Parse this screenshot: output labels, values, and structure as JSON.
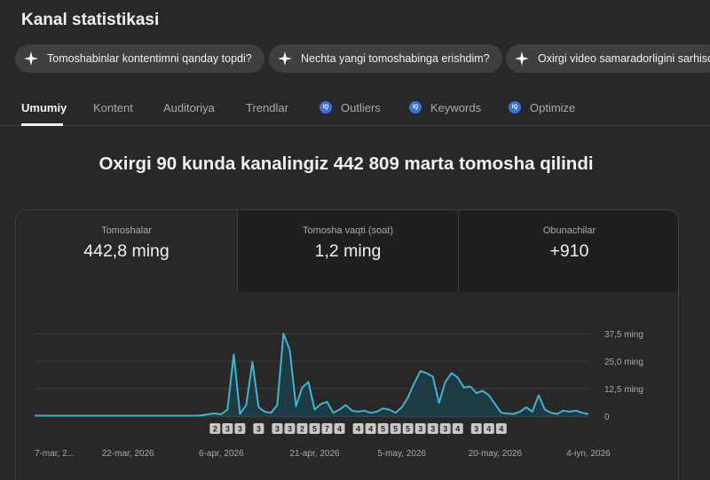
{
  "page_title": "Kanal statistikasi",
  "chips": [
    {
      "label": "Tomoshabinlar kontentimni qanday topdi?",
      "icon": "sparkle-icon"
    },
    {
      "label": "Nechta yangi tomoshabinga erishdim?",
      "icon": "sparkle-icon"
    },
    {
      "label": "Oxirgi video samaradorligini sarhisob",
      "icon": "sparkle-icon"
    }
  ],
  "tabs": [
    {
      "label": "Umumiy",
      "active": true
    },
    {
      "label": "Kontent"
    },
    {
      "label": "Auditoriya"
    },
    {
      "label": "Trendlar"
    },
    {
      "label": "Outliers",
      "icon": "vidiq-icon"
    },
    {
      "label": "Keywords",
      "icon": "vidiq-icon"
    },
    {
      "label": "Optimize",
      "icon": "vidiq-icon"
    }
  ],
  "headline": "Oxirgi 90 kunda kanalingiz 442 809 marta tomosha qilindi",
  "metrics": [
    {
      "label": "Tomoshalar",
      "value": "442,8 ming"
    },
    {
      "label": "Tomosha vaqti (soat)",
      "value": "1,2 ming"
    },
    {
      "label": "Obunachilar",
      "value": "+910"
    }
  ],
  "colors": {
    "background": "#282828",
    "line": "#41b4d2",
    "area": "#1c3d47",
    "chip": "#3f3f3f",
    "vidiq_icon": "#3b72d9",
    "marker": "#c8c8c8"
  },
  "chart_data": {
    "type": "area",
    "ylim": [
      0,
      37500
    ],
    "yticks": [
      "37,5 ming",
      "25,0 ming",
      "12,5 ming",
      "0"
    ],
    "ytick_values": [
      37500,
      25000,
      12500,
      0
    ],
    "xtick_labels": [
      "7-mar, 2...",
      "22-mar, 2026",
      "6-apr, 2026",
      "21-apr, 2026",
      "5-may, 2026",
      "20-may, 2026",
      "4-iyn, 2026"
    ],
    "xtick_days": [
      0,
      15,
      30,
      45,
      59,
      74,
      89
    ],
    "series": [
      {
        "values": [
          200,
          200,
          200,
          200,
          200,
          200,
          200,
          200,
          200,
          200,
          200,
          200,
          200,
          200,
          200,
          200,
          200,
          200,
          200,
          200,
          200,
          200,
          200,
          200,
          200,
          200,
          200,
          400,
          900,
          1200,
          800,
          3000,
          28000,
          1000,
          5000,
          24500,
          4000,
          2000,
          1500,
          5000,
          37500,
          30000,
          4500,
          13000,
          15500,
          3000,
          5500,
          6500,
          1500,
          3000,
          5000,
          2500,
          2000,
          2500,
          1500,
          2000,
          3500,
          3000,
          1500,
          4000,
          8500,
          15000,
          20500,
          19500,
          18000,
          6000,
          15500,
          19500,
          17500,
          13000,
          13500,
          10500,
          11500,
          9500,
          5500,
          1500,
          1200,
          1000,
          2000,
          4000,
          2000,
          9500,
          3000,
          1500,
          1000,
          2500,
          2000,
          2500,
          1500,
          1000
        ],
        "start": "7-mar"
      }
    ],
    "upload_markers": [
      {
        "day": 29,
        "count": "2"
      },
      {
        "day": 31,
        "count": "3"
      },
      {
        "day": 33,
        "count": "3"
      },
      {
        "day": 36,
        "count": "3"
      },
      {
        "day": 39,
        "count": "3"
      },
      {
        "day": 41,
        "count": "3"
      },
      {
        "day": 43,
        "count": "2"
      },
      {
        "day": 45,
        "count": "5"
      },
      {
        "day": 47,
        "count": "7"
      },
      {
        "day": 49,
        "count": "4"
      },
      {
        "day": 52,
        "count": "4"
      },
      {
        "day": 54,
        "count": "4"
      },
      {
        "day": 56,
        "count": "5"
      },
      {
        "day": 58,
        "count": "5"
      },
      {
        "day": 60,
        "count": "5"
      },
      {
        "day": 62,
        "count": "3"
      },
      {
        "day": 64,
        "count": "3"
      },
      {
        "day": 66,
        "count": "3"
      },
      {
        "day": 68,
        "count": "4"
      },
      {
        "day": 71,
        "count": "3"
      },
      {
        "day": 73,
        "count": "4"
      },
      {
        "day": 75,
        "count": "4"
      }
    ]
  }
}
